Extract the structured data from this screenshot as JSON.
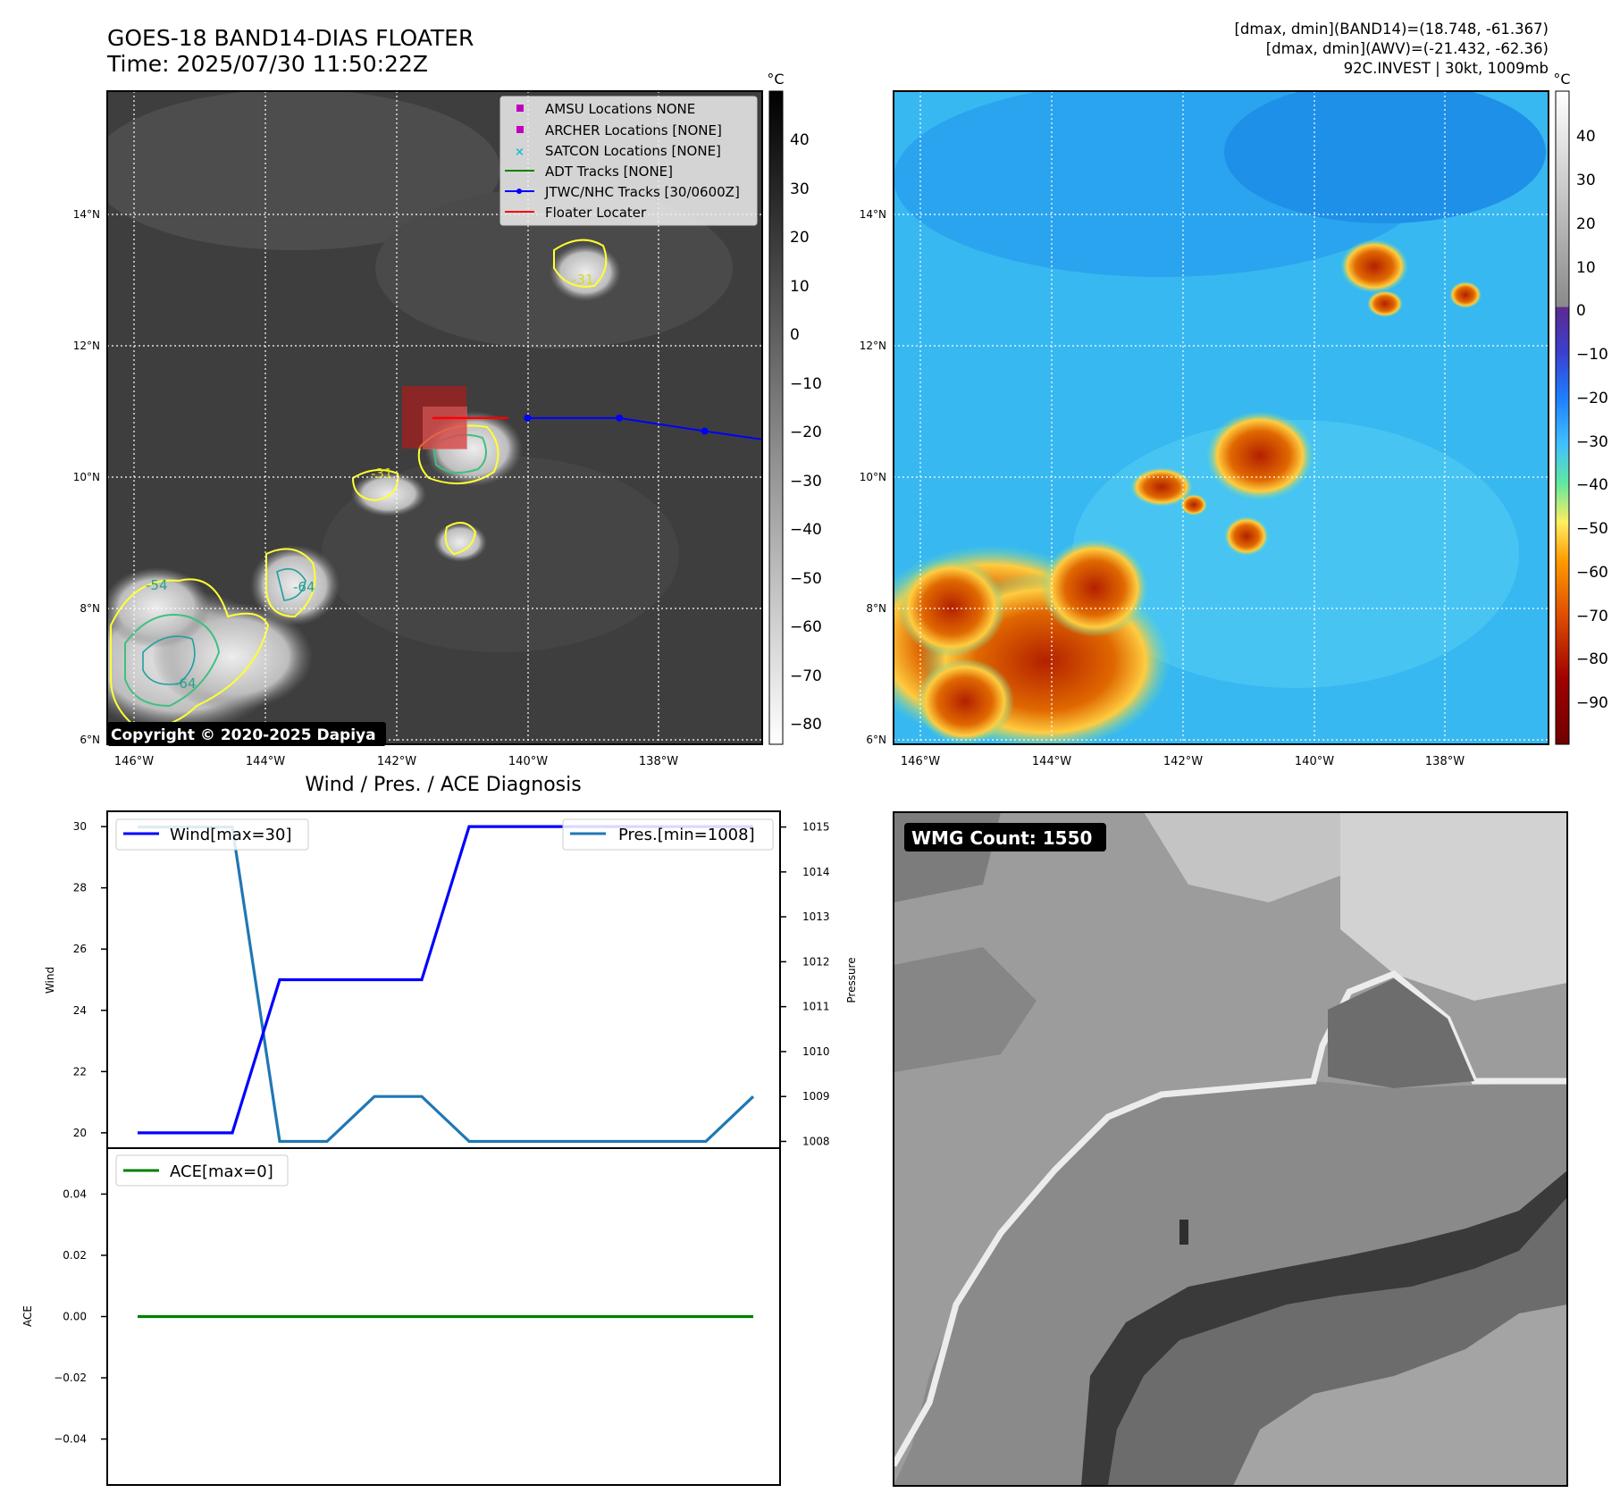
{
  "header": {
    "title_line1": "GOES-18 BAND14-DIAS FLOATER",
    "title_line2": "Time: 2025/07/30 11:50:22Z",
    "info_line1": "[dmax, dmin](BAND14)=(18.748, -61.367)",
    "info_line2": "[dmax, dmin](AWV)=(-21.432, -62.36)",
    "info_line3": "92C.INVEST | 30kt, 1009mb"
  },
  "map": {
    "lat_labels": [
      "14°N",
      "12°N",
      "10°N",
      "8°N",
      "6°N"
    ],
    "lon_labels": [
      "146°W",
      "144°W",
      "142°W",
      "140°W",
      "138°W"
    ],
    "copyright": "Copyright © 2020-2025 Dapiya",
    "contour_labels": [
      "-31",
      "-31",
      "-54",
      "-64",
      "-64"
    ],
    "legend": [
      {
        "label": "AMSU Locations NONE",
        "color": "#bf00bf",
        "marker": "square"
      },
      {
        "label": "ARCHER Locations [NONE]",
        "color": "#bf00bf",
        "marker": "square"
      },
      {
        "label": "SATCON Locations [NONE]",
        "color": "#17becf",
        "marker": "x"
      },
      {
        "label": "ADT Tracks [NONE]",
        "color": "#008000",
        "marker": "line"
      },
      {
        "label": "JTWC/NHC Tracks [30/0600Z]",
        "color": "#0000ff",
        "marker": "line-dot"
      },
      {
        "label": "Floater Locater",
        "color": "#ff0000",
        "marker": "line"
      }
    ],
    "track_points": [
      {
        "lon": -140.0,
        "lat": 10.9
      },
      {
        "lon": -138.6,
        "lat": 10.9
      },
      {
        "lon": -137.3,
        "lat": 10.7
      },
      {
        "lon": -136.4,
        "lat": 10.57
      }
    ],
    "floater_line": {
      "lon_start": -141.45,
      "lon_end": -140.3,
      "lat": 10.9
    }
  },
  "colorbar_left": {
    "unit": "°C",
    "ticks": [
      "40",
      "30",
      "20",
      "10",
      "0",
      "−10",
      "−20",
      "−30",
      "−40",
      "−50",
      "−60",
      "−70",
      "−80"
    ]
  },
  "colorbar_right": {
    "unit": "°C",
    "ticks": [
      "40",
      "30",
      "20",
      "10",
      "0",
      "−10",
      "−20",
      "−30",
      "−40",
      "−50",
      "−60",
      "−70",
      "−80",
      "−90"
    ]
  },
  "diag": {
    "title": "Wind / Pres. / ACE Diagnosis",
    "wind_axis_label": "Wind",
    "pressure_axis_label": "Pressure",
    "ace_axis_label": "ACE",
    "wind_legend": "Wind[max=30]",
    "pres_legend": "Pres.[min=1008]",
    "ace_legend": "ACE[max=0]",
    "wind_ticks": [
      "30",
      "28",
      "26",
      "24",
      "22",
      "20"
    ],
    "pres_ticks": [
      "1015",
      "1014",
      "1013",
      "1012",
      "1011",
      "1010",
      "1009",
      "1008"
    ],
    "ace_ticks": [
      "0.04",
      "0.02",
      "0.00",
      "−0.02",
      "−0.04"
    ]
  },
  "wmg": {
    "label": "WMG Count: 1550"
  },
  "chart_data": [
    {
      "type": "line",
      "title": "Wind / Pres. / ACE Diagnosis",
      "x": [
        0,
        1,
        2,
        3,
        4,
        5,
        6,
        7,
        8,
        9,
        10,
        11,
        12,
        13
      ],
      "series": [
        {
          "name": "Wind[max=30]",
          "axis": "left",
          "values": [
            20,
            20,
            20,
            25,
            25,
            25,
            25,
            30,
            30,
            30,
            30,
            30,
            30,
            30
          ]
        },
        {
          "name": "Pres.[min=1008]",
          "axis": "right",
          "values": [
            1015,
            1015,
            1015,
            1008,
            1008,
            1009,
            1009,
            1008,
            1008,
            1008,
            1008,
            1008,
            1008,
            1009
          ]
        }
      ],
      "ylabel": "Wind",
      "ylim": [
        19.5,
        30.5
      ],
      "y2label": "Pressure",
      "y2lim": [
        1007.85,
        1015.35
      ],
      "legend": [
        "top-left",
        "top-right"
      ]
    },
    {
      "type": "line",
      "x": [
        0,
        1,
        2,
        3,
        4,
        5,
        6,
        7,
        8,
        9,
        10,
        11,
        12,
        13
      ],
      "series": [
        {
          "name": "ACE[max=0]",
          "values": [
            0,
            0,
            0,
            0,
            0,
            0,
            0,
            0,
            0,
            0,
            0,
            0,
            0,
            0
          ]
        }
      ],
      "ylabel": "ACE",
      "ylim": [
        -0.055,
        0.055
      ],
      "legend": "top-left"
    }
  ]
}
